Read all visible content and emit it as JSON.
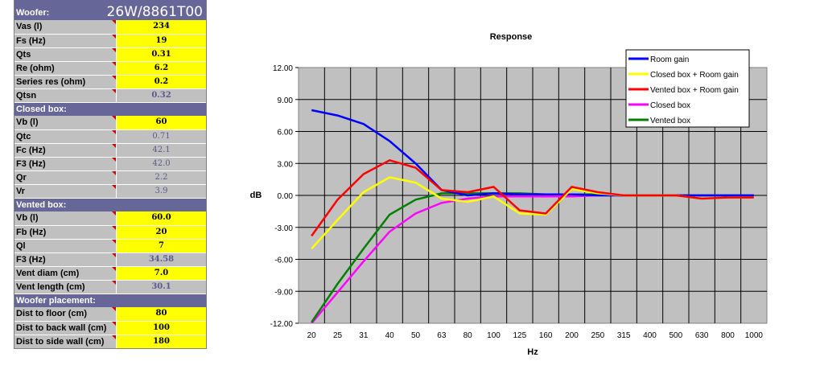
{
  "sheet": {
    "woofer_label": "Woofer:",
    "woofer_model": "26W/8861T00",
    "woofer_rows": [
      {
        "label": "Vas (l)",
        "value": "234",
        "kind": "inp"
      },
      {
        "label": "Fs (Hz)",
        "value": "19",
        "kind": "inp"
      },
      {
        "label": "Qts",
        "value": "0.31",
        "kind": "inp"
      },
      {
        "label": "Re (ohm)",
        "value": "6.2",
        "kind": "inp"
      },
      {
        "label": "Series res (ohm)",
        "value": "0.2",
        "kind": "inp"
      },
      {
        "label": "Qtsn",
        "value": "0.32",
        "kind": "calc-bold"
      }
    ],
    "closed_label": "Closed box:",
    "closed_rows": [
      {
        "label": "Vb (l)",
        "value": "60",
        "kind": "inp"
      },
      {
        "label": "Qtc",
        "value": "0.71",
        "kind": "calc"
      },
      {
        "label": "Fc (Hz)",
        "value": "42.1",
        "kind": "calc"
      },
      {
        "label": "F3 (Hz)",
        "value": "42.0",
        "kind": "calc"
      },
      {
        "label": "Qr",
        "value": "2.2",
        "kind": "calc"
      },
      {
        "label": "Vr",
        "value": "3.9",
        "kind": "calc"
      }
    ],
    "vented_label": "Vented box:",
    "vented_rows": [
      {
        "label": "Vb (l)",
        "value": "60.0",
        "kind": "inp"
      },
      {
        "label": "Fb (Hz)",
        "value": "20",
        "kind": "inp"
      },
      {
        "label": "Ql",
        "value": "7",
        "kind": "inp"
      },
      {
        "label": "F3 (Hz)",
        "value": "34.58",
        "kind": "calc-bold"
      },
      {
        "label": "Vent diam (cm)",
        "value": "7.0",
        "kind": "inp"
      },
      {
        "label": "Vent length (cm)",
        "value": "30.1",
        "kind": "calc-bold"
      }
    ],
    "placement_label": "Woofer placement:",
    "placement_rows": [
      {
        "label": "Dist to floor (cm)",
        "value": "80",
        "kind": "inp"
      },
      {
        "label": "Dist to back wall (cm)",
        "value": "100",
        "kind": "inp"
      },
      {
        "label": "Dist to side wall (cm)",
        "value": "180",
        "kind": "inp"
      }
    ]
  },
  "chart_data": {
    "type": "line",
    "title": "Response",
    "xlabel": "Hz",
    "ylabel": "dB",
    "categories": [
      "20",
      "25",
      "31",
      "40",
      "50",
      "63",
      "80",
      "100",
      "125",
      "160",
      "200",
      "250",
      "315",
      "400",
      "500",
      "630",
      "800",
      "1000"
    ],
    "y_ticks": [
      "12.00",
      "9.00",
      "6.00",
      "3.00",
      "0.00",
      "-3.00",
      "-6.00",
      "-9.00",
      "-12.00"
    ],
    "ylim": [
      -12,
      12
    ],
    "grid": true,
    "legend_position": "top-right",
    "series": [
      {
        "name": "Room gain",
        "color": "#0000ff",
        "values": [
          8.0,
          7.5,
          6.7,
          5.1,
          3.0,
          0.5,
          0.0,
          0.2,
          0.1,
          0.1,
          0.1,
          0.0,
          0.0,
          0.0,
          0.0,
          0.0,
          0.0,
          0.0
        ]
      },
      {
        "name": "Closed box + Room gain",
        "color": "#ffff00",
        "values": [
          -5.0,
          -2.3,
          0.3,
          1.7,
          1.2,
          -0.3,
          -0.6,
          -0.1,
          -1.7,
          -1.8,
          0.6,
          0.2,
          0.0,
          0.0,
          0.0,
          -0.3,
          -0.2,
          -0.2
        ]
      },
      {
        "name": "Vented box + Room gain",
        "color": "#ff0000",
        "values": [
          -3.8,
          -0.4,
          2.0,
          3.3,
          2.6,
          0.5,
          0.3,
          0.8,
          -1.4,
          -1.7,
          0.8,
          0.3,
          0.0,
          0.0,
          0.0,
          -0.3,
          -0.2,
          -0.2
        ]
      },
      {
        "name": "Closed box",
        "color": "#ff00ff",
        "values": [
          -12.0,
          -9.1,
          -6.2,
          -3.4,
          -1.7,
          -0.7,
          -0.3,
          -0.1,
          -0.1,
          -0.1,
          -0.1,
          0.0,
          0.0,
          0.0,
          0.0,
          0.0,
          0.0,
          0.0
        ]
      },
      {
        "name": "Vented box",
        "color": "#008000",
        "values": [
          -11.9,
          -8.3,
          -5.0,
          -1.8,
          -0.4,
          0.2,
          0.2,
          0.2,
          0.2,
          0.1,
          0.1,
          0.1,
          0.0,
          0.0,
          0.0,
          0.0,
          0.0,
          0.0
        ]
      }
    ]
  }
}
